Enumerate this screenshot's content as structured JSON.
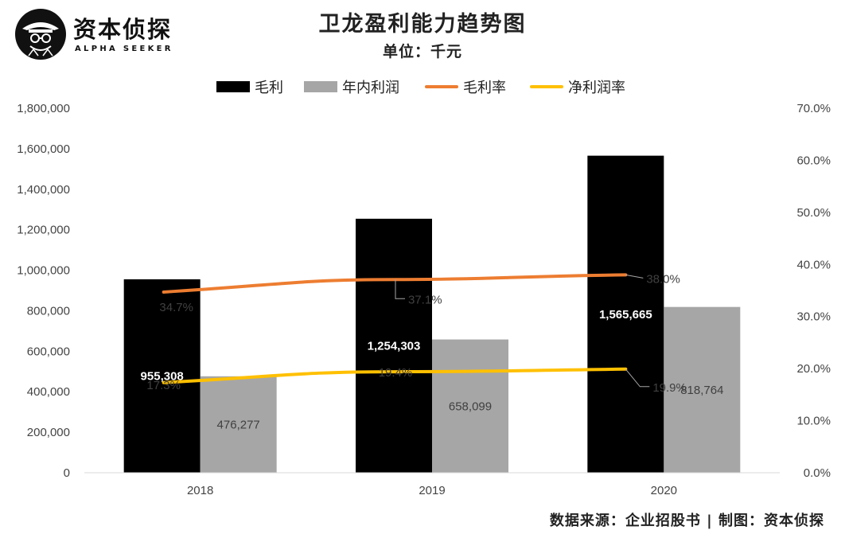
{
  "brand": {
    "name": "资本侦探",
    "subtitle": "ALPHA SEEKER"
  },
  "source_note": "数据来源：企业招股书 | 制图：资本侦探",
  "colors": {
    "gross_profit": "#000000",
    "net_profit": "#a6a6a6",
    "gross_margin": "#ed7d31",
    "net_margin": "#ffc000"
  },
  "chart_data": {
    "type": "bar",
    "title": "卫龙盈利能力趋势图",
    "subtitle": "单位：千元",
    "categories": [
      "2018",
      "2019",
      "2020"
    ],
    "series": [
      {
        "name": "毛利",
        "kind": "bar",
        "axis": "left",
        "values": [
          955308,
          1254303,
          1565665
        ],
        "labels": [
          "955,308",
          "1,254,303",
          "1,565,665"
        ]
      },
      {
        "name": "年内利润",
        "kind": "bar",
        "axis": "left",
        "values": [
          476277,
          658099,
          818764
        ],
        "labels": [
          "476,277",
          "658,099",
          "818,764"
        ]
      },
      {
        "name": "毛利率",
        "kind": "line",
        "axis": "right",
        "values": [
          34.7,
          37.1,
          38.0
        ],
        "labels": [
          "34.7%",
          "37.1%",
          "38.0%"
        ]
      },
      {
        "name": "净利润率",
        "kind": "line",
        "axis": "right",
        "values": [
          17.3,
          19.4,
          19.9
        ],
        "labels": [
          "17.3%",
          "19.4%",
          "19.9%"
        ]
      }
    ],
    "left_axis": {
      "ylim": [
        0,
        1800000
      ],
      "ticks": [
        "0",
        "200,000",
        "400,000",
        "600,000",
        "800,000",
        "1,000,000",
        "1,200,000",
        "1,400,000",
        "1,600,000",
        "1,800,000"
      ]
    },
    "right_axis": {
      "ylim": [
        0,
        70
      ],
      "ticks": [
        "0.0%",
        "10.0%",
        "20.0%",
        "30.0%",
        "40.0%",
        "50.0%",
        "60.0%",
        "70.0%"
      ]
    },
    "legend_position": "top",
    "grid": false
  }
}
